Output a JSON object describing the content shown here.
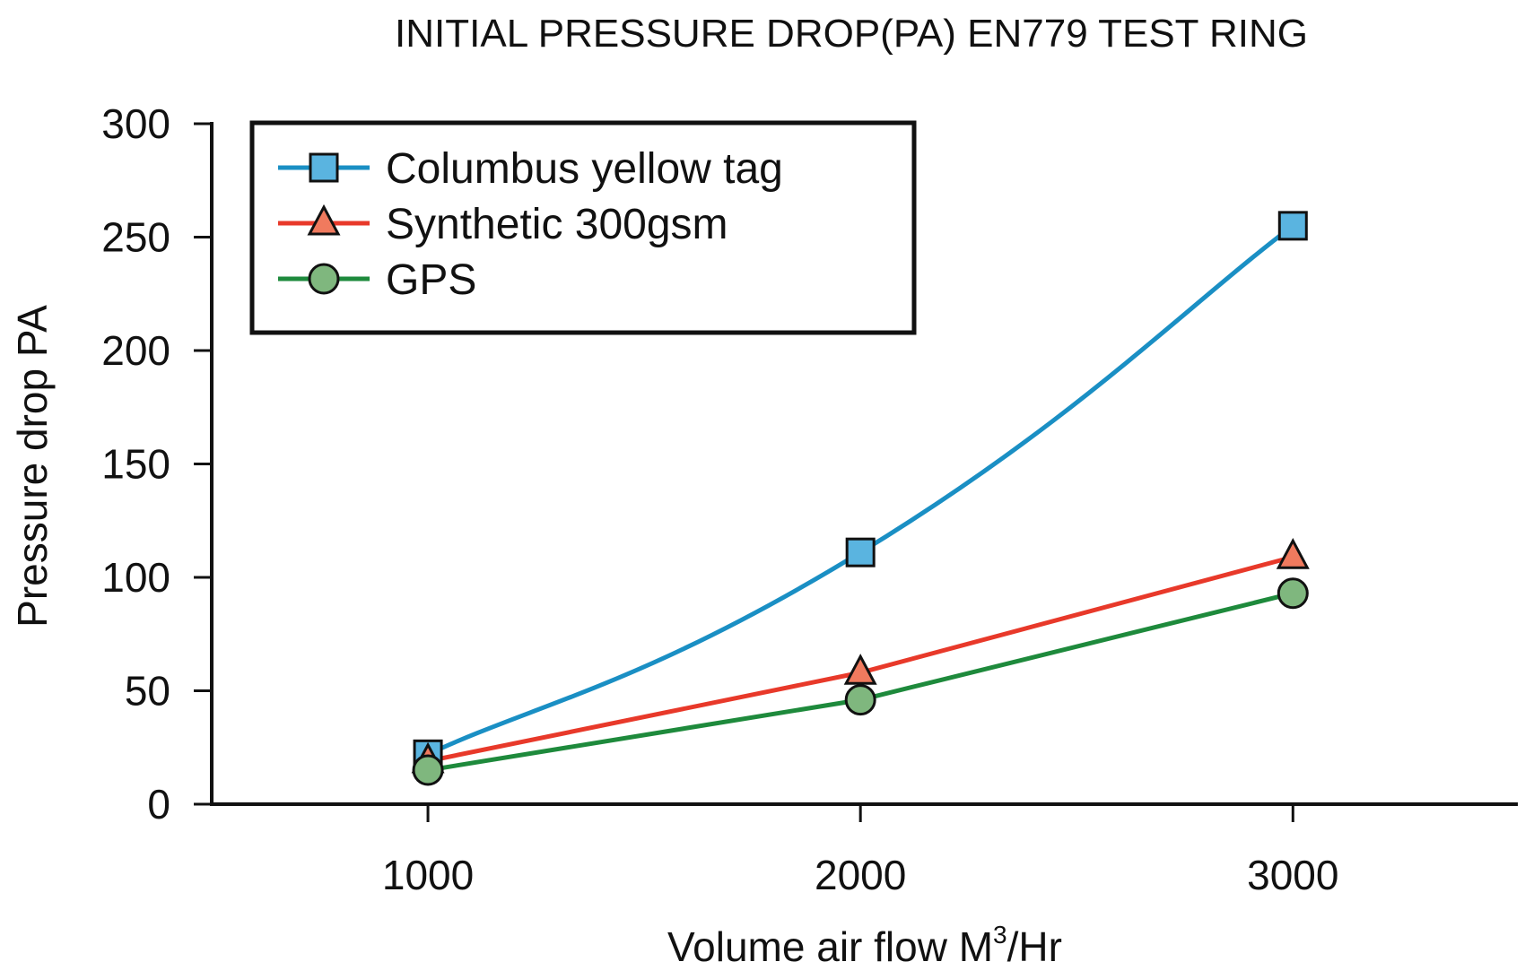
{
  "chart_data": {
    "type": "line",
    "title": "INITIAL PRESSURE DROP(PA) EN779 TEST RING",
    "xlabel": "Volume air flow M",
    "xlabel_sup": "3",
    "xlabel_suffix": "/Hr",
    "ylabel": "Pressure drop PA",
    "x": [
      1000,
      2000,
      3000
    ],
    "x_ticks": [
      "1000",
      "2000",
      "3000"
    ],
    "y_ticks": [
      "0",
      "50",
      "100",
      "150",
      "200",
      "250",
      "300"
    ],
    "ylim": [
      0,
      300
    ],
    "xlim": [
      500,
      3520
    ],
    "grid": false,
    "legend_position": "top-left",
    "series": [
      {
        "name": "Columbus yellow tag",
        "values": [
          22,
          111,
          255
        ],
        "color": "#1a8fc4",
        "marker_fill": "#5ab4e0",
        "marker": "square",
        "smooth": true
      },
      {
        "name": "Synthetic 300gsm",
        "values": [
          19,
          58,
          109
        ],
        "color": "#e8392a",
        "marker_fill": "#f07a5e",
        "marker": "triangle",
        "smooth": false
      },
      {
        "name": "GPS",
        "values": [
          15,
          46,
          93
        ],
        "color": "#1e8a3c",
        "marker_fill": "#7fb77e",
        "marker": "circle",
        "smooth": false
      }
    ]
  }
}
